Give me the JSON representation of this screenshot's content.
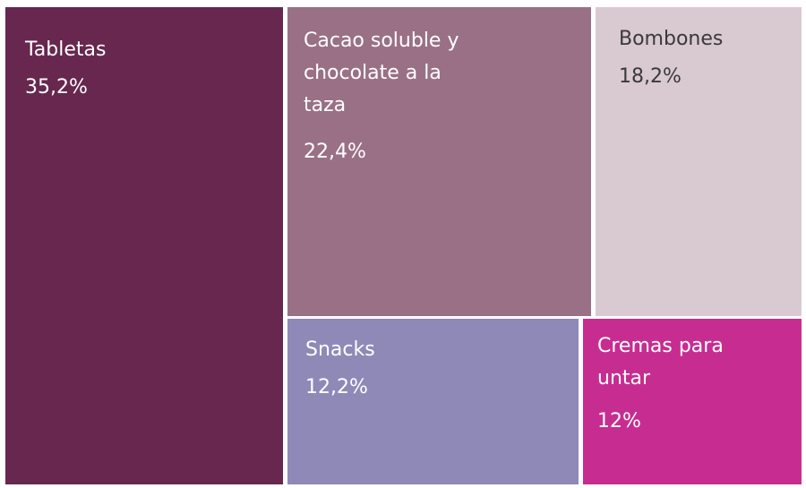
{
  "chart_data": {
    "type": "treemap",
    "series": [
      {
        "name": "Tabletas",
        "value": 35.2,
        "value_label": "35,2%",
        "color": "#67274f",
        "text_color": "#ffffff"
      },
      {
        "name": "Cacao soluble y\nchocolate a la\ntaza",
        "value": 22.4,
        "value_label": "22,4%",
        "color": "#9a7086",
        "text_color": "#ffffff"
      },
      {
        "name": "Bombones",
        "value": 18.2,
        "value_label": "18,2%",
        "color": "#d9c9d0",
        "text_color": "#3a3a3a"
      },
      {
        "name": "Snacks",
        "value": 12.2,
        "value_label": "12,2%",
        "color": "#8f89b8",
        "text_color": "#ffffff"
      },
      {
        "name": "Cremas para\nuntar",
        "value": 12.0,
        "value_label": "12%",
        "color": "#c72d91",
        "text_color": "#ffffff"
      }
    ]
  }
}
